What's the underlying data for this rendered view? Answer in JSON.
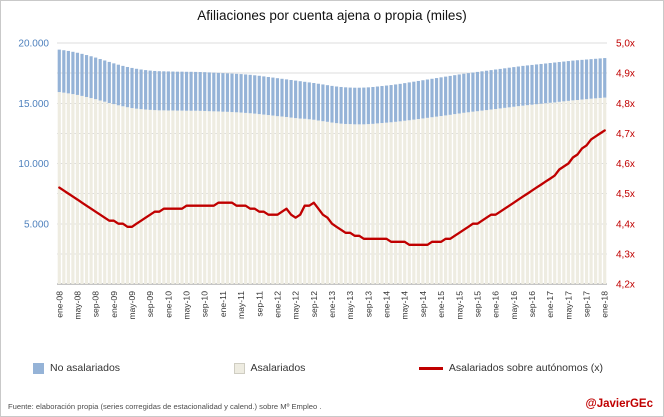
{
  "title": "Afiliaciones por cuenta ajena o propia  (miles)",
  "footer": {
    "source": "Fuente: elaboración propia  (series corregidas de estacionalidad y calend.) sobre Mº Empleo .",
    "watermark": "@JavierGEc"
  },
  "legend": [
    {
      "label": "No asalariados",
      "color": "#95B3D7",
      "type": "bar"
    },
    {
      "label": "Asalariados",
      "color": "#EEECE1",
      "type": "bar"
    },
    {
      "label": "Asalariados sobre autónomos (x)",
      "color": "#C00000",
      "type": "line"
    }
  ],
  "chart_data": {
    "type": "bar",
    "subtype": "stacked-bars-with-line",
    "title": "Afiliaciones por cuenta ajena o propia  (miles)",
    "grid_color": "#DCDCDC",
    "x_tick_step": 4,
    "x_tick_labels": [
      "ene-08",
      "may-08",
      "sep-08",
      "ene-09",
      "may-09",
      "sep-09",
      "ene-10",
      "may-10",
      "sep-10",
      "ene-11",
      "may-11",
      "sep-11",
      "ene-12",
      "may-12",
      "sep-12",
      "ene-13",
      "may-13",
      "sep-13",
      "ene-14",
      "may-14",
      "sep-14",
      "ene-15",
      "may-15",
      "sep-15",
      "ene-16",
      "may-16",
      "sep-16",
      "ene-17",
      "may-17",
      "sep-17",
      "ene-18"
    ],
    "left_axis": {
      "min": 0,
      "max": 20000,
      "color": "#4F81BD",
      "ticks": [
        "20.000",
        "15.000",
        "10.000",
        "5.000"
      ],
      "tick_values": [
        20000,
        15000,
        10000,
        5000
      ]
    },
    "right_axis": {
      "min": 4.2,
      "max": 5.0,
      "color": "#C00000",
      "ticks": [
        "5,0x",
        "4,9x",
        "4,8x",
        "4,7x",
        "4,6x",
        "4,5x",
        "4,4x",
        "4,3x",
        "4,2x"
      ],
      "tick_values": [
        5.0,
        4.9,
        4.8,
        4.7,
        4.6,
        4.5,
        4.4,
        4.3,
        4.2
      ]
    },
    "series": [
      {
        "name": "Asalariados",
        "type": "bar",
        "color": "#EEECE1",
        "axis": "left",
        "values": [
          15930,
          15880,
          15820,
          15760,
          15690,
          15610,
          15520,
          15430,
          15340,
          15230,
          15130,
          15020,
          14930,
          14830,
          14750,
          14670,
          14600,
          14550,
          14510,
          14480,
          14450,
          14430,
          14410,
          14410,
          14400,
          14400,
          14390,
          14390,
          14380,
          14380,
          14380,
          14370,
          14360,
          14340,
          14330,
          14320,
          14300,
          14290,
          14270,
          14250,
          14230,
          14200,
          14170,
          14140,
          14100,
          14060,
          14020,
          13980,
          13930,
          13900,
          13860,
          13810,
          13770,
          13730,
          13710,
          13670,
          13630,
          13570,
          13510,
          13460,
          13400,
          13350,
          13310,
          13280,
          13270,
          13250,
          13250,
          13250,
          13270,
          13290,
          13330,
          13360,
          13390,
          13420,
          13460,
          13500,
          13550,
          13590,
          13640,
          13690,
          13740,
          13790,
          13840,
          13890,
          13940,
          13990,
          14040,
          14100,
          14150,
          14210,
          14250,
          14300,
          14340,
          14390,
          14430,
          14480,
          14520,
          14570,
          14620,
          14660,
          14710,
          14760,
          14800,
          14840,
          14880,
          14920,
          14960,
          15000,
          15040,
          15070,
          15120,
          15160,
          15200,
          15240,
          15270,
          15310,
          15340,
          15380,
          15410,
          15440,
          15470
        ]
      },
      {
        "name": "No asalariados",
        "type": "bar",
        "color": "#95B3D7",
        "axis": "left",
        "values": [
          3520,
          3520,
          3520,
          3510,
          3500,
          3490,
          3480,
          3470,
          3450,
          3440,
          3420,
          3410,
          3380,
          3370,
          3350,
          3340,
          3330,
          3310,
          3290,
          3270,
          3260,
          3250,
          3250,
          3240,
          3240,
          3230,
          3230,
          3230,
          3230,
          3230,
          3220,
          3220,
          3220,
          3220,
          3210,
          3200,
          3200,
          3190,
          3190,
          3190,
          3190,
          3190,
          3190,
          3180,
          3180,
          3170,
          3160,
          3150,
          3150,
          3130,
          3120,
          3120,
          3110,
          3100,
          3070,
          3060,
          3050,
          3050,
          3050,
          3040,
          3040,
          3040,
          3040,
          3040,
          3030,
          3040,
          3040,
          3050,
          3050,
          3060,
          3060,
          3070,
          3080,
          3090,
          3100,
          3110,
          3120,
          3140,
          3150,
          3160,
          3170,
          3180,
          3190,
          3200,
          3210,
          3220,
          3230,
          3230,
          3240,
          3240,
          3250,
          3250,
          3260,
          3260,
          3270,
          3270,
          3280,
          3280,
          3280,
          3290,
          3290,
          3290,
          3300,
          3300,
          3300,
          3300,
          3300,
          3300,
          3300,
          3310,
          3300,
          3300,
          3300,
          3300,
          3300,
          3290,
          3290,
          3280,
          3280,
          3280,
          3280
        ]
      },
      {
        "name": "Asalariados sobre autónomos (x)",
        "type": "line",
        "color": "#C00000",
        "axis": "right",
        "values": [
          4.52,
          4.51,
          4.5,
          4.49,
          4.48,
          4.47,
          4.46,
          4.45,
          4.44,
          4.43,
          4.42,
          4.41,
          4.41,
          4.4,
          4.4,
          4.39,
          4.39,
          4.4,
          4.41,
          4.42,
          4.43,
          4.44,
          4.44,
          4.45,
          4.45,
          4.45,
          4.45,
          4.45,
          4.46,
          4.46,
          4.46,
          4.46,
          4.46,
          4.46,
          4.46,
          4.47,
          4.47,
          4.47,
          4.47,
          4.46,
          4.46,
          4.46,
          4.45,
          4.45,
          4.44,
          4.44,
          4.43,
          4.43,
          4.43,
          4.44,
          4.45,
          4.43,
          4.42,
          4.43,
          4.46,
          4.46,
          4.47,
          4.45,
          4.43,
          4.42,
          4.4,
          4.39,
          4.38,
          4.37,
          4.37,
          4.36,
          4.36,
          4.35,
          4.35,
          4.35,
          4.35,
          4.35,
          4.35,
          4.34,
          4.34,
          4.34,
          4.34,
          4.33,
          4.33,
          4.33,
          4.33,
          4.33,
          4.34,
          4.34,
          4.34,
          4.35,
          4.35,
          4.36,
          4.37,
          4.38,
          4.39,
          4.4,
          4.4,
          4.41,
          4.42,
          4.43,
          4.43,
          4.44,
          4.45,
          4.46,
          4.47,
          4.48,
          4.49,
          4.5,
          4.51,
          4.52,
          4.53,
          4.54,
          4.55,
          4.56,
          4.58,
          4.59,
          4.6,
          4.62,
          4.63,
          4.65,
          4.66,
          4.68,
          4.69,
          4.7,
          4.71
        ]
      }
    ]
  }
}
